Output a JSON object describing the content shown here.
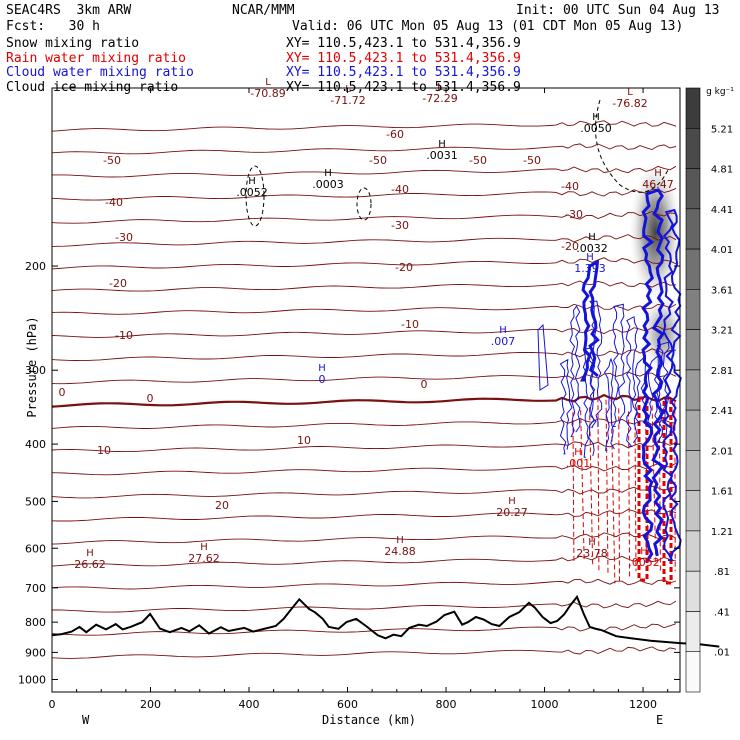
{
  "header": {
    "title": "SEAC4RS  3km ARW",
    "center": "NCAR/MMM",
    "init": "Init: 00 UTC Sun 04 Aug 13",
    "fcst": "Fcst:   30 h",
    "valid": "Valid: 06 UTC Mon 05 Aug 13 (01 CDT Mon 05 Aug 13)"
  },
  "legend": [
    {
      "label": "Snow mixing ratio",
      "xy": "XY= 110.5,423.1 to 531.4,356.9",
      "color": "#000000"
    },
    {
      "label": "Rain water mixing ratio",
      "xy": "XY= 110.5,423.1 to 531.4,356.9",
      "color": "#e00000"
    },
    {
      "label": "Cloud water mixing ratio",
      "xy": "XY= 110.5,423.1 to 531.4,356.9",
      "color": "#1414d8"
    },
    {
      "label": "Cloud ice mixing ratio",
      "xy": "XY= 110.5,423.1 to 531.4,356.9",
      "color": "#000000"
    }
  ],
  "chart_data": {
    "type": "cross-section contour",
    "xlabel": "Distance (km)",
    "ylabel": "Pressure (hPa)",
    "x_ticks": [
      0,
      200,
      400,
      600,
      800,
      1000,
      1200
    ],
    "y_ticks": [
      200,
      300,
      400,
      500,
      600,
      700,
      800,
      900,
      1000
    ],
    "xlim": [
      0,
      1275
    ],
    "ylim": [
      1050,
      100
    ],
    "y_scale": "log",
    "endpoints": {
      "left": "W",
      "right": "E"
    },
    "temperature_isotherms": [
      {
        "label": "-60",
        "p": 135
      },
      {
        "label": "-50",
        "p": 162
      },
      {
        "label": "-40",
        "p": 190
      },
      {
        "label": "-30",
        "p": 228
      },
      {
        "label": "-20",
        "p": 272
      },
      {
        "label": "-10",
        "p": 325
      },
      {
        "label": "0",
        "p": 380
      }
    ],
    "isotherm_labels": [
      "-60",
      "-50",
      "-40",
      "-30",
      "-20",
      "-10",
      "0",
      "10",
      "20"
    ],
    "extrema_labels": [
      {
        "kind": "L",
        "value": "-70.89"
      },
      {
        "kind": "L",
        "value": "-71.72"
      },
      {
        "kind": "L",
        "value": "-72.29"
      },
      {
        "kind": "L",
        "value": "-76.82"
      },
      {
        "kind": "H",
        "value": ".0050"
      },
      {
        "kind": "H",
        "value": ".0031"
      },
      {
        "kind": "H",
        "value": ".0003"
      },
      {
        "kind": "H",
        "value": ".0052"
      },
      {
        "kind": "H",
        "value": ".0032"
      },
      {
        "kind": "H",
        "value": "1.393"
      },
      {
        "kind": "H",
        "value": ".007"
      },
      {
        "kind": "H",
        "value": "0"
      },
      {
        "kind": "H",
        "value": "26.62"
      },
      {
        "kind": "H",
        "value": "27.62"
      },
      {
        "kind": "H",
        "value": "24.88"
      },
      {
        "kind": "H",
        "value": "20.27"
      },
      {
        "kind": "H",
        "value": "23.78"
      },
      {
        "kind": "H",
        "value": "46.47"
      },
      {
        "kind": "H",
        "value": ".001"
      },
      {
        "kind": "H",
        "value": ".0052"
      }
    ],
    "colorbar": {
      "unit": "g kg⁻¹",
      "labels": [
        "5.21",
        "4.81",
        "4.41",
        "4.01",
        "3.61",
        "3.21",
        "2.81",
        "2.41",
        "2.01",
        "1.61",
        "1.21",
        ".81",
        ".41",
        ".01"
      ]
    },
    "terrain_color": "#000000",
    "isotherm_color": "#7a1010",
    "rain_color": "#e00000",
    "cloudwater_color": "#1414d8"
  }
}
